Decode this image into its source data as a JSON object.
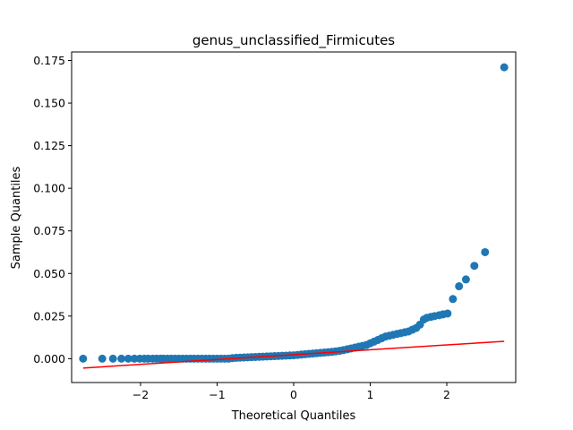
{
  "chart_data": {
    "type": "scatter",
    "title": "genus_unclassified_Firmicutes",
    "xlabel": "Theoretical Quantiles",
    "ylabel": "Sample Quantiles",
    "xlim": [
      -2.9,
      2.9
    ],
    "ylim": [
      -0.014,
      0.18
    ],
    "x_ticks": [
      -2,
      -1,
      0,
      1,
      2
    ],
    "x_tick_labels": [
      "−2",
      "−1",
      "0",
      "1",
      "2"
    ],
    "y_ticks": [
      0.0,
      0.025,
      0.05,
      0.075,
      0.1,
      0.125,
      0.15,
      0.175
    ],
    "y_tick_labels": [
      "0.000",
      "0.025",
      "0.050",
      "0.075",
      "0.100",
      "0.125",
      "0.150",
      "0.175"
    ],
    "grid": false,
    "legend": "none",
    "point_color": "#1f77b4",
    "line_color": "#ff0000",
    "reference_line": {
      "x": [
        -2.75,
        2.75
      ],
      "y": [
        -0.0055,
        0.0102
      ]
    },
    "points_x": [
      -2.75,
      -2.5,
      -2.36,
      -2.25,
      -2.16,
      -2.08,
      -2.01,
      -1.95,
      -1.9,
      -1.84,
      -1.79,
      -1.74,
      -1.7,
      -1.65,
      -1.6,
      -1.55,
      -1.5,
      -1.45,
      -1.4,
      -1.35,
      -1.3,
      -1.25,
      -1.2,
      -1.15,
      -1.1,
      -1.05,
      -1.0,
      -0.95,
      -0.9,
      -0.85,
      -0.8,
      -0.75,
      -0.7,
      -0.65,
      -0.6,
      -0.55,
      -0.5,
      -0.45,
      -0.4,
      -0.35,
      -0.3,
      -0.25,
      -0.2,
      -0.15,
      -0.1,
      -0.05,
      0.0,
      0.05,
      0.1,
      0.15,
      0.2,
      0.25,
      0.3,
      0.35,
      0.4,
      0.45,
      0.5,
      0.55,
      0.6,
      0.65,
      0.7,
      0.75,
      0.8,
      0.85,
      0.9,
      0.95,
      1.0,
      1.05,
      1.1,
      1.15,
      1.2,
      1.25,
      1.3,
      1.35,
      1.4,
      1.45,
      1.5,
      1.55,
      1.6,
      1.65,
      1.7,
      1.74,
      1.79,
      1.84,
      1.9,
      1.95,
      2.01,
      2.08,
      2.16,
      2.25,
      2.36,
      2.5,
      2.75
    ],
    "points_y": [
      0.0,
      0.0,
      0.0,
      0.0,
      0.0,
      0.0,
      0.0,
      0.0,
      0.0,
      0.0,
      0.0,
      0.0,
      0.0,
      0.0,
      0.0,
      0.0,
      0.0,
      0.0,
      0.0,
      0.0,
      0.0,
      0.0,
      0.0,
      0.0,
      0.0,
      0.0,
      0.0,
      0.0,
      0.0,
      0.0,
      0.0003,
      0.0005,
      0.0006,
      0.0007,
      0.0008,
      0.0009,
      0.001,
      0.0011,
      0.0012,
      0.0013,
      0.0014,
      0.0015,
      0.0016,
      0.0017,
      0.0018,
      0.0019,
      0.002,
      0.0022,
      0.0024,
      0.0026,
      0.0028,
      0.003,
      0.0032,
      0.0034,
      0.0036,
      0.0038,
      0.004,
      0.0043,
      0.0046,
      0.005,
      0.0055,
      0.006,
      0.0065,
      0.007,
      0.0075,
      0.008,
      0.009,
      0.01,
      0.011,
      0.012,
      0.013,
      0.0135,
      0.014,
      0.0145,
      0.015,
      0.0155,
      0.016,
      0.017,
      0.018,
      0.02,
      0.023,
      0.024,
      0.0245,
      0.025,
      0.0255,
      0.026,
      0.0265,
      0.035,
      0.0425,
      0.0465,
      0.0545,
      0.0625,
      0.171
    ]
  }
}
